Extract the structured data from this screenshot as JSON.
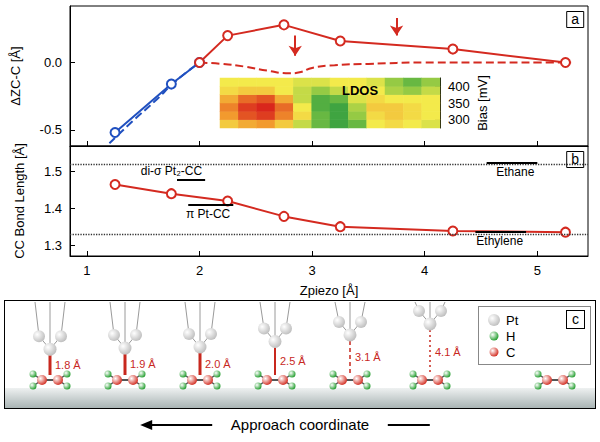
{
  "chart_data": [
    {
      "panel": "a",
      "type": "line",
      "y_label": "ΔZC-C [Å]",
      "xlim": [
        0.85,
        5.45
      ],
      "xticks": [
        1,
        2,
        3,
        4,
        5
      ],
      "ylim": [
        -0.62,
        0.42
      ],
      "yticks": [
        -0.5,
        {
          "value": 0,
          "label": "0.0"
        }
      ],
      "tick_labels": "y",
      "series": [
        {
          "color": "#2050c0",
          "line_style": "dashed",
          "x": [
            1.2,
            1.4,
            1.6,
            1.8,
            2.0
          ],
          "values": [
            -0.6,
            -0.44,
            -0.29,
            -0.13,
            0.0
          ]
        },
        {
          "color": "#d42a20",
          "line_style": "dashed",
          "x": [
            2.0,
            2.2,
            2.4,
            2.6,
            2.8,
            2.9,
            3.0,
            3.2,
            3.5,
            4.0,
            4.5,
            5.0,
            5.3
          ],
          "values": [
            0.0,
            -0.01,
            -0.03,
            -0.06,
            -0.08,
            -0.07,
            -0.04,
            -0.02,
            -0.01,
            0.0,
            0.0,
            0.0,
            0.0
          ]
        },
        {
          "color": "#2050c0",
          "line_style": "solid",
          "marker": "open_circle",
          "x": [
            1.25,
            1.75,
            2.0
          ],
          "values": [
            -0.52,
            -0.16,
            0.0
          ]
        },
        {
          "color": "#d42a20",
          "line_style": "solid",
          "marker": "open_circle",
          "x": [
            2.0,
            2.25,
            2.75,
            3.25,
            4.25,
            5.25
          ],
          "values": [
            0.0,
            0.2,
            0.28,
            0.16,
            0.1,
            0.0
          ]
        }
      ],
      "arrows": [
        {
          "x": 2.85,
          "y": [
            0.2,
            0.05
          ]
        },
        {
          "x": 3.75,
          "y": [
            0.33,
            0.2
          ]
        }
      ],
      "arrow_color": "#d42a20",
      "inset": {
        "type": "heatmap",
        "label": "LDOS",
        "y_label": "Bias [mV]",
        "ylim": [
          275,
          425
        ],
        "yticks": [
          300,
          350,
          400
        ],
        "bias": [
          287.5,
          312.5,
          337.5,
          362.5,
          387.5,
          412.5
        ],
        "range": [
          0,
          1
        ],
        "colors": [
          "#159040",
          "#7dc242",
          "#f3ea4b",
          "#f29a2e",
          "#d9261c"
        ],
        "cells": [
          [
            0.6,
            0.7,
            0.75,
            0.6,
            0.4,
            0.2,
            0.1,
            0.2,
            0.5,
            0.55,
            0.5,
            0.45
          ],
          [
            0.75,
            0.9,
            0.95,
            0.8,
            0.55,
            0.2,
            0.1,
            0.3,
            0.55,
            0.6,
            0.55,
            0.5
          ],
          [
            0.8,
            0.95,
            1.0,
            0.85,
            0.5,
            0.15,
            0.1,
            0.35,
            0.6,
            0.6,
            0.55,
            0.5
          ],
          [
            0.7,
            0.85,
            0.9,
            0.7,
            0.4,
            0.15,
            0.2,
            0.45,
            0.55,
            0.5,
            0.5,
            0.5
          ],
          [
            0.55,
            0.6,
            0.6,
            0.5,
            0.4,
            0.3,
            0.4,
            0.5,
            0.5,
            0.35,
            0.3,
            0.4
          ],
          [
            0.5,
            0.5,
            0.5,
            0.5,
            0.45,
            0.45,
            0.5,
            0.5,
            0.45,
            0.3,
            0.2,
            0.3
          ]
        ]
      }
    },
    {
      "panel": "b",
      "type": "line",
      "x_label": "Zpiezo [Å]",
      "y_label": "CC Bond Length [Å]",
      "xlim": [
        0.85,
        5.45
      ],
      "xticks": [
        1,
        2,
        3,
        4,
        5
      ],
      "ylim": [
        1.27,
        1.57
      ],
      "yticks": [
        1.3,
        1.4,
        1.5
      ],
      "series": [
        {
          "color": "#d42a20",
          "line_style": "solid",
          "marker": "open_circle",
          "x": [
            1.25,
            1.75,
            2.25,
            2.75,
            3.25,
            4.25,
            5.25
          ],
          "values": [
            1.465,
            1.44,
            1.42,
            1.378,
            1.35,
            1.338,
            1.335
          ]
        }
      ],
      "guide_lines": [
        1.525,
        1.335
      ],
      "references": [
        {
          "label": "di-σ Pt₂-CC",
          "value": 1.478,
          "x": [
            1.8,
            2.05
          ]
        },
        {
          "label": "π Pt-CC",
          "value": 1.41,
          "x": [
            1.9,
            2.3
          ]
        },
        {
          "label": "Ethane",
          "value": 1.525,
          "x": [
            4.55,
            5.0
          ]
        },
        {
          "label": "Ethylene",
          "value": 1.335,
          "x": [
            4.45,
            4.9
          ]
        }
      ]
    }
  ],
  "diagram": {
    "panel": "c",
    "distances": [
      "1.8 Å",
      "1.9 Å",
      "2.0 Å",
      "2.5 Å",
      "3.1 Å",
      "4.1 Å"
    ],
    "legend": [
      {
        "label": "Pt",
        "color": "#bdbdbd"
      },
      {
        "label": "H",
        "color": "#1e9c2a"
      },
      {
        "label": "C",
        "color": "#d22a1e"
      }
    ],
    "arrow_label": "Approach coordinate"
  }
}
